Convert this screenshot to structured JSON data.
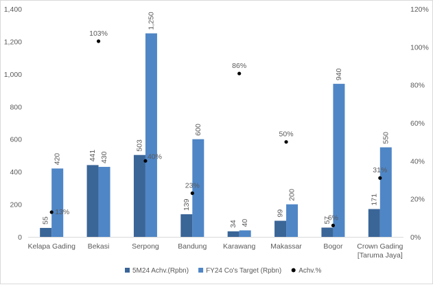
{
  "chart_data": {
    "type": "bar",
    "categories": [
      "Kelapa Gading",
      "Bekasi",
      "Serpong",
      "Bandung",
      "Karawang",
      "Makassar",
      "Bogor",
      "Crown Gading [Taruma Jaya]"
    ],
    "category_lines": [
      [
        "Kelapa Gading"
      ],
      [
        "Bekasi"
      ],
      [
        "Serpong"
      ],
      [
        "Bandung"
      ],
      [
        "Karawang"
      ],
      [
        "Makassar"
      ],
      [
        "Bogor"
      ],
      [
        "Crown Gading",
        "[Taruma Jaya]"
      ]
    ],
    "series": [
      {
        "name": "5M24 Achv.(Rpbn)",
        "kind": "bar",
        "axis": "left",
        "color": "#3a6597",
        "values": [
          55,
          441,
          503,
          139,
          34,
          99,
          57,
          171
        ],
        "labels": [
          "55",
          "441",
          "503",
          "139",
          "34",
          "99",
          "57",
          "171"
        ]
      },
      {
        "name": "FY24 Co's Target (Rpbn)",
        "kind": "bar",
        "axis": "left",
        "color": "#4f86c6",
        "values": [
          420,
          430,
          1250,
          600,
          40,
          200,
          940,
          550
        ],
        "labels": [
          "420",
          "430",
          "1,250",
          "600",
          "40",
          "200",
          "940",
          "550"
        ]
      },
      {
        "name": "Achv.%",
        "kind": "scatter",
        "axis": "right",
        "color": "#000000",
        "values": [
          13,
          103,
          40,
          23,
          86,
          50,
          6,
          31
        ],
        "labels": [
          "13%",
          "103%",
          "40%",
          "23%",
          "86%",
          "50%",
          "6%",
          "31%"
        ]
      }
    ],
    "y_left": {
      "lim": [
        0,
        1400
      ],
      "ticks": [
        "0",
        "200",
        "400",
        "600",
        "800",
        "1,000",
        "1,200",
        "1,400"
      ]
    },
    "y_right": {
      "lim": [
        0,
        120
      ],
      "ticks": [
        "0%",
        "20%",
        "40%",
        "60%",
        "80%",
        "100%",
        "120%"
      ]
    },
    "grid": false,
    "legend": "bottom",
    "title": "",
    "xlabel": "",
    "ylabel": ""
  }
}
